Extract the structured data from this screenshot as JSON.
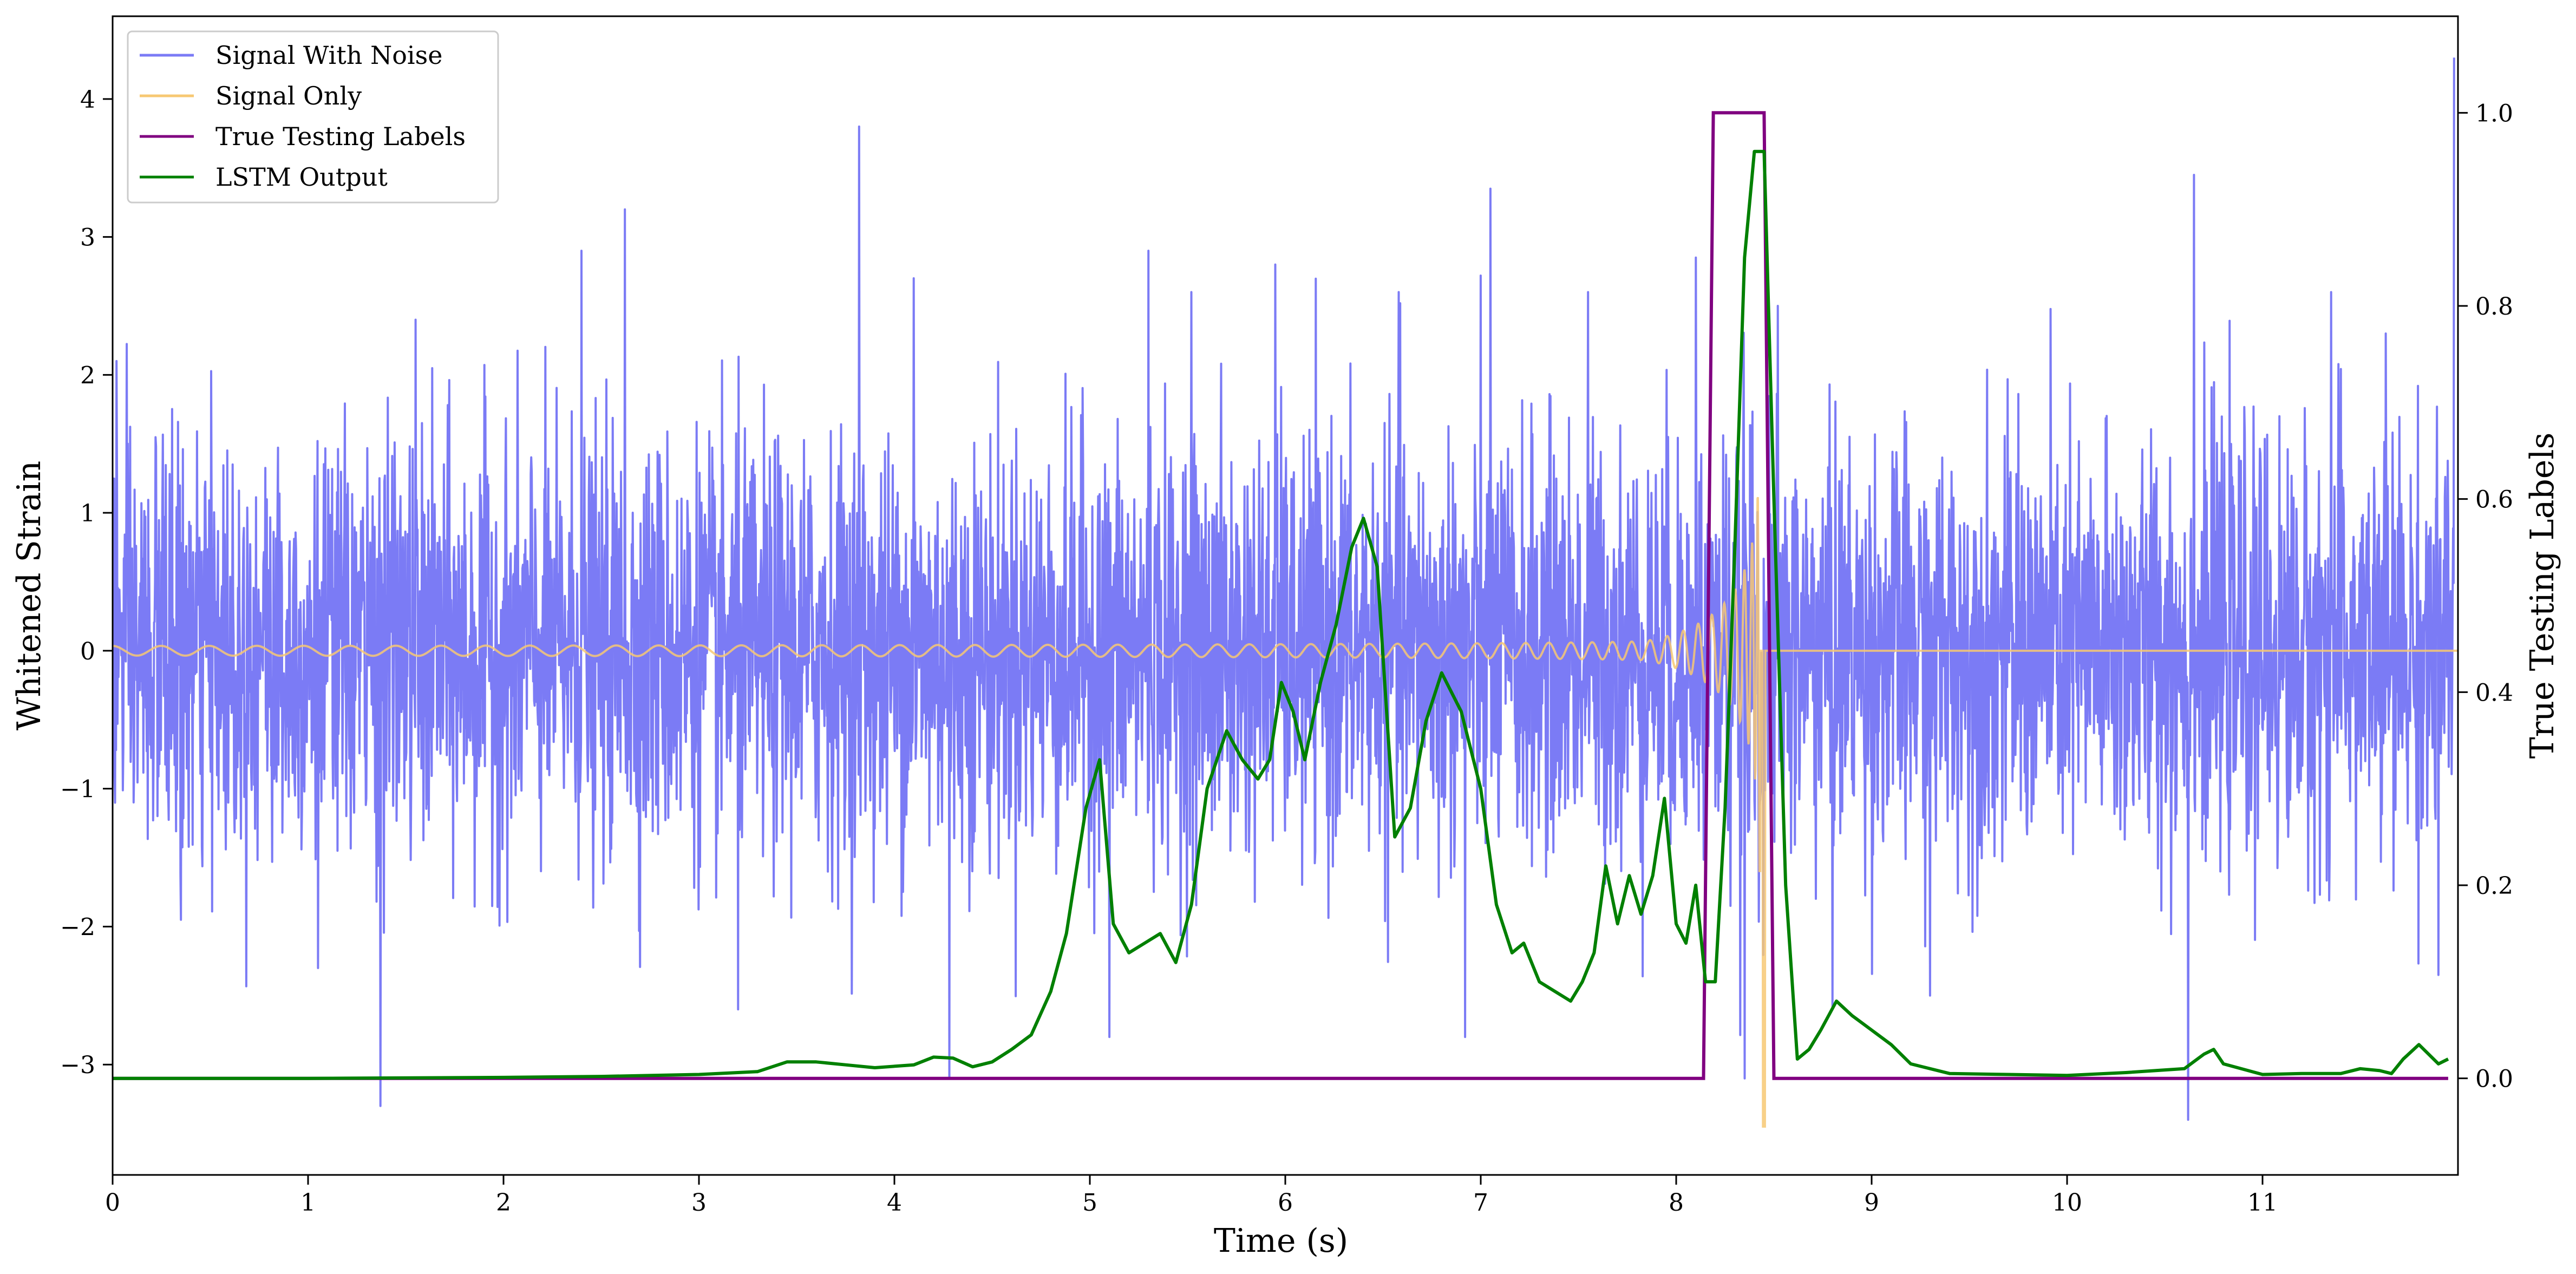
{
  "chart_data": {
    "type": "line",
    "xlabel": "Time (s)",
    "ylabel_left": "Whitened Strain",
    "ylabel_right": "True Testing Labels",
    "xlim": [
      0,
      12
    ],
    "ylim_left": [
      -3.8,
      4.6
    ],
    "ylim_right": [
      -0.1,
      1.1
    ],
    "x_ticks": [
      0,
      1,
      2,
      3,
      4,
      5,
      6,
      7,
      8,
      9,
      10,
      11
    ],
    "y_ticks_left": [
      {
        "value": -3,
        "label": "−3"
      },
      {
        "value": -2,
        "label": "−2"
      },
      {
        "value": -1,
        "label": "−1"
      },
      {
        "value": 0,
        "label": "0"
      },
      {
        "value": 1,
        "label": "1"
      },
      {
        "value": 2,
        "label": "2"
      },
      {
        "value": 3,
        "label": "3"
      },
      {
        "value": 4,
        "label": "4"
      }
    ],
    "y_ticks_right": [
      {
        "value": 0.0,
        "label": "0.0"
      },
      {
        "value": 0.2,
        "label": "0.2"
      },
      {
        "value": 0.4,
        "label": "0.4"
      },
      {
        "value": 0.6,
        "label": "0.6"
      },
      {
        "value": 0.8,
        "label": "0.8"
      },
      {
        "value": 1.0,
        "label": "1.0"
      }
    ],
    "grid": false,
    "legend_position": "top-left",
    "series": [
      {
        "name": "Signal With Noise",
        "axis": "left",
        "color": "#7b7bf5",
        "kind": "noise",
        "noise_std": 0.75,
        "sample_count": 4800,
        "peak_events": [
          {
            "x": 0.02,
            "y": 2.1
          },
          {
            "x": 0.35,
            "y": -1.95
          },
          {
            "x": 1.05,
            "y": -2.3
          },
          {
            "x": 1.37,
            "y": -3.3
          },
          {
            "x": 1.55,
            "y": 2.4
          },
          {
            "x": 2.4,
            "y": 2.9
          },
          {
            "x": 2.62,
            "y": 3.2
          },
          {
            "x": 3.2,
            "y": -2.6
          },
          {
            "x": 3.82,
            "y": 3.8
          },
          {
            "x": 4.1,
            "y": 2.7
          },
          {
            "x": 4.28,
            "y": -3.1
          },
          {
            "x": 5.1,
            "y": -2.8
          },
          {
            "x": 5.3,
            "y": 2.9
          },
          {
            "x": 5.52,
            "y": 2.6
          },
          {
            "x": 5.95,
            "y": 2.8
          },
          {
            "x": 6.58,
            "y": 2.6
          },
          {
            "x": 6.92,
            "y": -2.8
          },
          {
            "x": 7.05,
            "y": 3.35
          },
          {
            "x": 7.55,
            "y": 2.6
          },
          {
            "x": 8.1,
            "y": 2.85
          },
          {
            "x": 8.35,
            "y": -3.1
          },
          {
            "x": 8.52,
            "y": 2.5
          },
          {
            "x": 8.8,
            "y": -2.6
          },
          {
            "x": 9.3,
            "y": -2.5
          },
          {
            "x": 10.62,
            "y": -3.4
          },
          {
            "x": 10.65,
            "y": 3.45
          },
          {
            "x": 11.35,
            "y": 2.6
          },
          {
            "x": 11.63,
            "y": 2.3
          },
          {
            "x": 11.9,
            "y": -2.35
          },
          {
            "x": 11.98,
            "y": 4.3
          }
        ]
      },
      {
        "name": "Signal Only",
        "axis": "left",
        "color": "#f7c873",
        "kind": "chirp",
        "chirp": {
          "t_merge": 8.43,
          "amp_start": 0.035,
          "amp_peak": 1.9,
          "f_start": 4.0,
          "f_end": 60,
          "ringdown_min": -3.45
        },
        "after_merge_value": 0.0
      },
      {
        "name": "True Testing Labels",
        "axis": "right",
        "color": "#800080",
        "x": [
          0,
          8.14,
          8.19,
          8.45,
          8.5,
          11.95
        ],
        "y": [
          0,
          0,
          1,
          1,
          0,
          0
        ]
      },
      {
        "name": "LSTM Output",
        "axis": "right",
        "color": "#008000",
        "x": [
          0,
          1,
          2,
          2.5,
          3.0,
          3.3,
          3.45,
          3.6,
          3.75,
          3.9,
          4.1,
          4.2,
          4.3,
          4.4,
          4.5,
          4.6,
          4.7,
          4.8,
          4.88,
          4.98,
          5.05,
          5.12,
          5.2,
          5.28,
          5.36,
          5.44,
          5.52,
          5.6,
          5.7,
          5.78,
          5.86,
          5.92,
          5.98,
          6.04,
          6.1,
          6.18,
          6.26,
          6.34,
          6.4,
          6.47,
          6.56,
          6.64,
          6.72,
          6.8,
          6.9,
          7.0,
          7.08,
          7.16,
          7.22,
          7.3,
          7.38,
          7.46,
          7.52,
          7.58,
          7.64,
          7.7,
          7.76,
          7.82,
          7.88,
          7.94,
          8.0,
          8.05,
          8.1,
          8.15,
          8.2,
          8.25,
          8.3,
          8.35,
          8.4,
          8.45,
          8.5,
          8.56,
          8.62,
          8.68,
          8.74,
          8.82,
          8.9,
          9.0,
          9.1,
          9.2,
          9.4,
          9.7,
          10.0,
          10.3,
          10.6,
          10.7,
          10.75,
          10.8,
          11.0,
          11.2,
          11.4,
          11.5,
          11.6,
          11.66,
          11.72,
          11.8,
          11.9,
          11.95
        ],
        "y": [
          0.0,
          0.0,
          0.001,
          0.002,
          0.004,
          0.007,
          0.017,
          0.017,
          0.014,
          0.011,
          0.014,
          0.022,
          0.021,
          0.012,
          0.017,
          0.03,
          0.045,
          0.09,
          0.15,
          0.28,
          0.33,
          0.16,
          0.13,
          0.14,
          0.15,
          0.12,
          0.18,
          0.3,
          0.36,
          0.33,
          0.31,
          0.33,
          0.41,
          0.38,
          0.33,
          0.41,
          0.47,
          0.55,
          0.58,
          0.53,
          0.25,
          0.28,
          0.37,
          0.42,
          0.38,
          0.3,
          0.18,
          0.13,
          0.14,
          0.1,
          0.09,
          0.08,
          0.1,
          0.13,
          0.22,
          0.16,
          0.21,
          0.17,
          0.21,
          0.29,
          0.16,
          0.14,
          0.2,
          0.1,
          0.1,
          0.28,
          0.55,
          0.85,
          0.96,
          0.96,
          0.6,
          0.2,
          0.02,
          0.03,
          0.05,
          0.08,
          0.065,
          0.05,
          0.035,
          0.015,
          0.005,
          0.004,
          0.003,
          0.006,
          0.01,
          0.025,
          0.03,
          0.015,
          0.004,
          0.005,
          0.005,
          0.01,
          0.008,
          0.005,
          0.02,
          0.035,
          0.015,
          0.02
        ]
      }
    ]
  }
}
